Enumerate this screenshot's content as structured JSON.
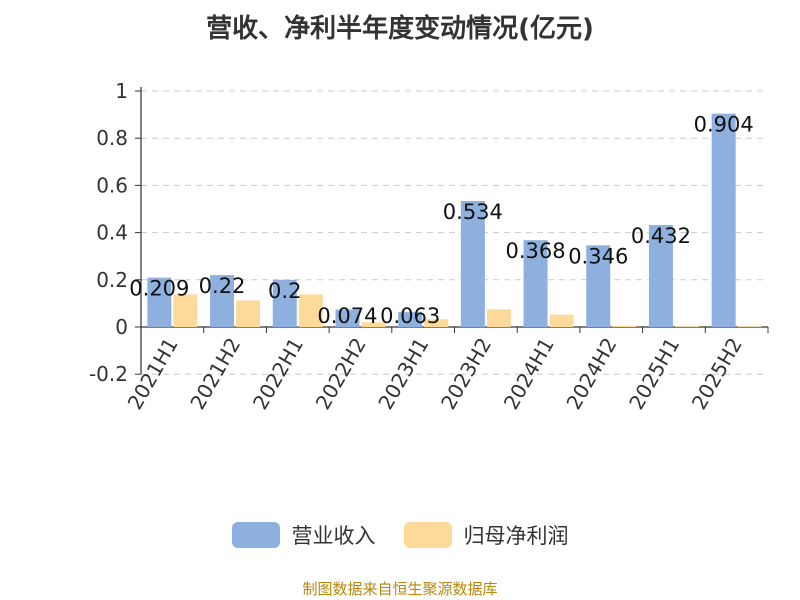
{
  "title": "营收、净利半年度变动情况(亿元)",
  "source": "制图数据来自恒生聚源数据库",
  "colors": {
    "revenue": "#8eb0de",
    "profit": "#fdd99a",
    "axis": "#333333",
    "grid": "#cccccc"
  },
  "chart_data": {
    "type": "bar",
    "categories": [
      "2021H1",
      "2021H2",
      "2022H1",
      "2022H2",
      "2023H1",
      "2023H2",
      "2024H1",
      "2024H2",
      "2025H1",
      "2025H2"
    ],
    "series": [
      {
        "name": "营业收入",
        "values": [
          0.209,
          0.22,
          0.2,
          0.074,
          0.063,
          0.534,
          0.368,
          0.346,
          0.432,
          0.904
        ],
        "labels": [
          "0.209",
          "0.22",
          "0.2",
          "0.074",
          "0.063",
          "0.534",
          "0.368",
          "0.346",
          "0.432",
          "0.904"
        ]
      },
      {
        "name": "归母净利润",
        "values": [
          0.138,
          0.112,
          0.138,
          0.02,
          0.033,
          0.075,
          0.053,
          0.005,
          0.003,
          0.003
        ]
      }
    ],
    "yticks": [
      "1",
      "0.8",
      "0.6",
      "0.4",
      "0.2",
      "0",
      "-0.2"
    ],
    "ylim": [
      -0.2,
      1
    ],
    "grid": true,
    "legend_position": "bottom-center"
  }
}
